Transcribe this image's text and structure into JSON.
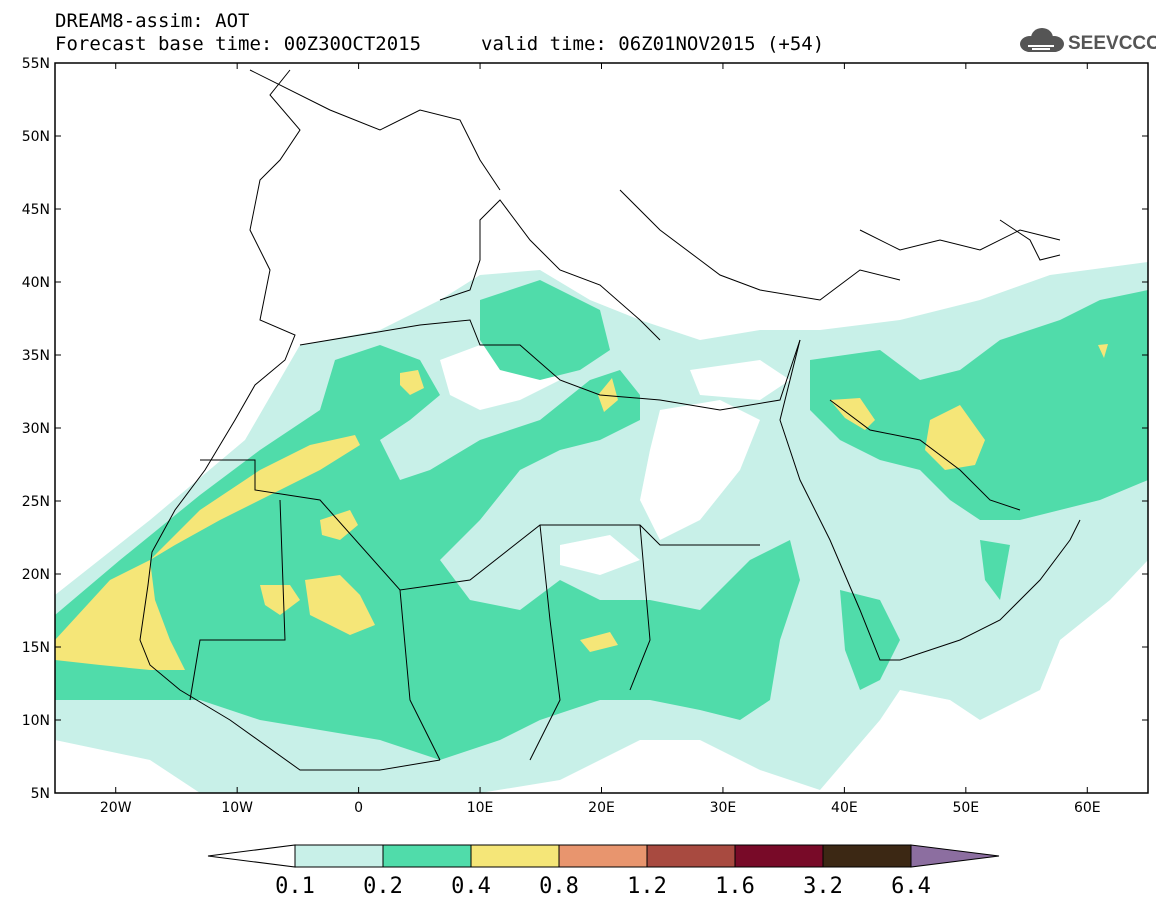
{
  "header": {
    "title_line1": "DREAM8-assim: AOT",
    "title_line2": "Forecast base time: 00Z30OCT2015",
    "valid_time": "valid time: 06Z01NOV2015 (+54)",
    "logo_text": "SEEVCCC"
  },
  "map": {
    "lat_labels": [
      "55N",
      "50N",
      "45N",
      "40N",
      "35N",
      "30N",
      "25N",
      "20N",
      "15N",
      "10N",
      "5N"
    ],
    "lon_labels": [
      "20W",
      "10W",
      "0",
      "10E",
      "20E",
      "30E",
      "40E",
      "50E",
      "60E"
    ],
    "extent": {
      "lon_min": -25,
      "lon_max": 65,
      "lat_min": 5,
      "lat_max": 55
    },
    "variable": "AOT"
  },
  "colorbar": {
    "labels": [
      "0.1",
      "0.2",
      "0.4",
      "0.8",
      "1.2",
      "1.6",
      "3.2",
      "6.4"
    ],
    "colors": [
      "#c8f0e8",
      "#50dcaa",
      "#f5e678",
      "#e8956e",
      "#a84a40",
      "#780a28",
      "#3c2814",
      "#8c6ea0"
    ]
  }
}
